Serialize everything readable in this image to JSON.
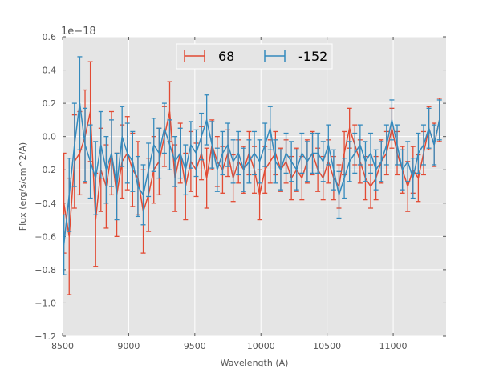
{
  "chart_data": {
    "type": "line",
    "title": "",
    "xlabel": "Wavelength (A)",
    "ylabel": "Flux (erg/s/cm^2/A)",
    "offset_label": "1e−18",
    "xlim": [
      8500,
      11400
    ],
    "ylim": [
      -1.2,
      0.6
    ],
    "xticks": [
      8500,
      9000,
      9500,
      10000,
      10500,
      11000
    ],
    "xtick_labels": [
      "8500",
      "9000",
      "9500",
      "10000",
      "10500",
      "11000"
    ],
    "yticks": [
      -1.2,
      -1.0,
      -0.8,
      -0.6,
      -0.4,
      -0.2,
      0.0,
      0.2,
      0.4,
      0.6
    ],
    "ytick_labels": [
      "−1.2",
      "−1.0",
      "−0.8",
      "−0.6",
      "−0.4",
      "−0.2",
      "0.0",
      "0.2",
      "0.4",
      "0.6"
    ],
    "grid": true,
    "legend_position": "top-center",
    "x_start": 8510,
    "x_step": 40,
    "series": [
      {
        "name": "68",
        "color": "#e24a33",
        "values": [
          -0.4,
          -0.6,
          -0.15,
          -0.1,
          0.0,
          0.15,
          -0.5,
          -0.2,
          -0.3,
          -0.1,
          -0.35,
          -0.15,
          -0.1,
          -0.2,
          -0.25,
          -0.45,
          -0.35,
          -0.2,
          -0.15,
          0.0,
          0.15,
          -0.25,
          -0.1,
          -0.3,
          -0.15,
          -0.2,
          -0.1,
          -0.25,
          -0.05,
          -0.15,
          -0.2,
          -0.1,
          -0.25,
          -0.15,
          -0.2,
          -0.1,
          -0.2,
          -0.35,
          -0.2,
          -0.15,
          -0.1,
          -0.2,
          -0.15,
          -0.25,
          -0.2,
          -0.25,
          -0.15,
          -0.1,
          -0.2,
          -0.25,
          -0.15,
          -0.25,
          -0.3,
          -0.1,
          0.05,
          -0.05,
          -0.15,
          -0.25,
          -0.3,
          -0.25,
          -0.15,
          -0.1,
          0.05,
          -0.1,
          -0.2,
          -0.3,
          -0.2,
          -0.25,
          -0.1,
          0.05,
          -0.05,
          0.1
        ],
        "yerr": [
          0.3,
          0.35,
          0.28,
          0.25,
          0.28,
          0.3,
          0.28,
          0.25,
          0.25,
          0.25,
          0.25,
          0.22,
          0.22,
          0.22,
          0.22,
          0.25,
          0.22,
          0.2,
          0.2,
          0.18,
          0.18,
          0.2,
          0.18,
          0.2,
          0.18,
          0.16,
          0.16,
          0.18,
          0.15,
          0.15,
          0.14,
          0.14,
          0.14,
          0.13,
          0.14,
          0.13,
          0.14,
          0.15,
          0.14,
          0.13,
          0.13,
          0.13,
          0.13,
          0.13,
          0.13,
          0.13,
          0.13,
          0.13,
          0.13,
          0.13,
          0.13,
          0.13,
          0.13,
          0.13,
          0.12,
          0.12,
          0.13,
          0.13,
          0.13,
          0.13,
          0.13,
          0.13,
          0.12,
          0.13,
          0.14,
          0.15,
          0.14,
          0.14,
          0.13,
          0.13,
          0.13,
          0.13
        ]
      },
      {
        "name": "-152",
        "color": "#348abd",
        "values": [
          -0.65,
          -0.35,
          -0.05,
          0.2,
          -0.05,
          -0.15,
          -0.25,
          -0.05,
          -0.2,
          -0.1,
          -0.3,
          0.0,
          -0.1,
          -0.15,
          -0.3,
          -0.35,
          -0.2,
          -0.05,
          -0.1,
          0.05,
          -0.05,
          -0.15,
          -0.1,
          -0.2,
          -0.05,
          -0.1,
          0.0,
          0.1,
          -0.05,
          -0.2,
          -0.1,
          -0.05,
          -0.15,
          -0.1,
          -0.2,
          -0.15,
          -0.1,
          -0.15,
          -0.05,
          0.05,
          -0.15,
          -0.2,
          -0.1,
          -0.15,
          -0.2,
          -0.1,
          -0.15,
          -0.1,
          -0.1,
          -0.15,
          -0.05,
          -0.2,
          -0.35,
          -0.25,
          -0.15,
          -0.1,
          -0.05,
          -0.15,
          -0.1,
          -0.2,
          -0.15,
          -0.05,
          0.1,
          -0.05,
          -0.2,
          -0.15,
          -0.25,
          -0.1,
          -0.05,
          0.05,
          -0.05,
          0.1
        ],
        "yerr": [
          0.18,
          0.22,
          0.25,
          0.28,
          0.22,
          0.22,
          0.22,
          0.2,
          0.2,
          0.2,
          0.2,
          0.18,
          0.18,
          0.18,
          0.18,
          0.18,
          0.16,
          0.16,
          0.15,
          0.15,
          0.15,
          0.15,
          0.15,
          0.15,
          0.14,
          0.14,
          0.14,
          0.15,
          0.14,
          0.13,
          0.13,
          0.13,
          0.13,
          0.13,
          0.13,
          0.13,
          0.13,
          0.13,
          0.13,
          0.13,
          0.13,
          0.12,
          0.12,
          0.12,
          0.12,
          0.12,
          0.12,
          0.12,
          0.12,
          0.12,
          0.12,
          0.12,
          0.14,
          0.12,
          0.12,
          0.12,
          0.12,
          0.12,
          0.12,
          0.12,
          0.12,
          0.12,
          0.12,
          0.12,
          0.12,
          0.12,
          0.12,
          0.12,
          0.12,
          0.12,
          0.12,
          0.12
        ]
      }
    ]
  }
}
